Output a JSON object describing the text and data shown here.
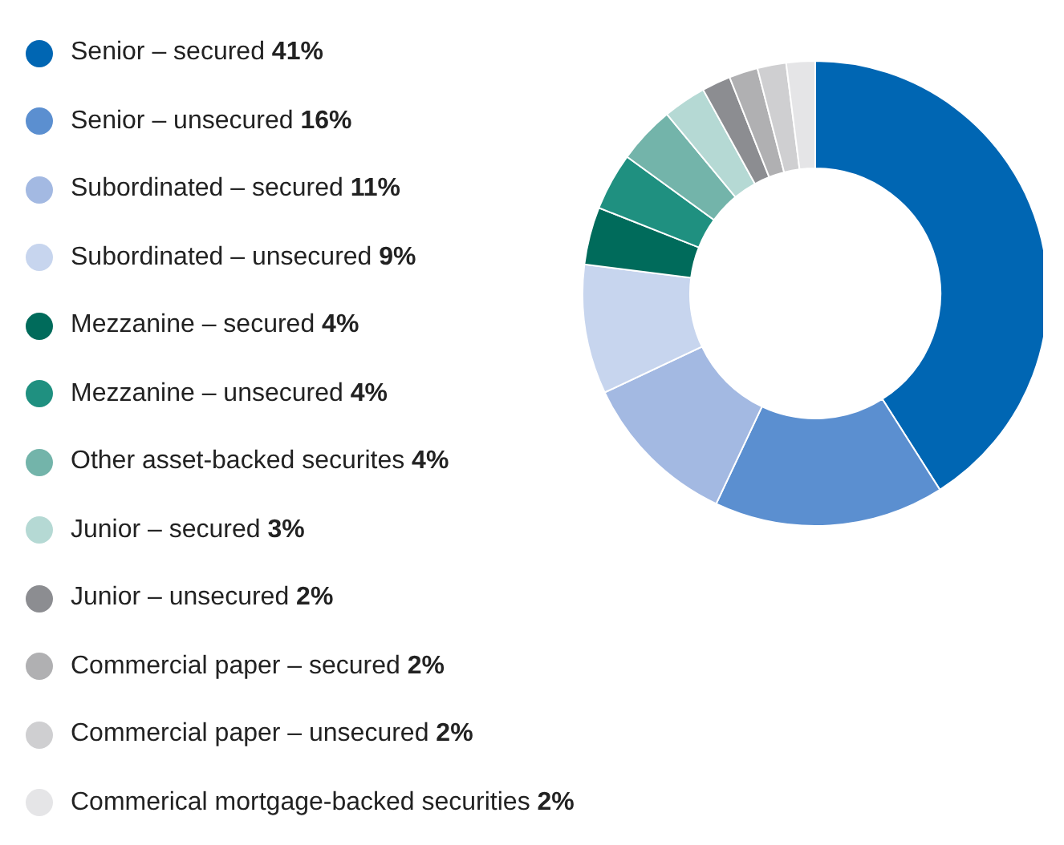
{
  "chart_data": {
    "type": "donut",
    "categories": [
      "Senior – secured",
      "Senior – unsecured",
      "Subordinated – secured",
      "Subordinated – unsecured",
      "Mezzanine – secured",
      "Mezzanine – unsecured",
      "Other asset-backed securites",
      "Junior – secured",
      "Junior – unsecured",
      "Commercial paper – secured",
      "Commercial paper – unsecured",
      "Commerical mortgage-backed securities"
    ],
    "values": [
      41,
      16,
      11,
      9,
      4,
      4,
      4,
      3,
      2,
      2,
      2,
      2
    ],
    "value_labels": [
      "41%",
      "16%",
      "11%",
      "9%",
      "4%",
      "4%",
      "4%",
      "3%",
      "2%",
      "2%",
      "2%",
      "2%"
    ],
    "colors": [
      "#0066b3",
      "#5b8fd0",
      "#a3b9e2",
      "#c7d5ee",
      "#006b5b",
      "#1f9080",
      "#73b4aa",
      "#b5d9d4",
      "#8c8d91",
      "#b0b0b2",
      "#cfcfd1",
      "#e5e5e7"
    ],
    "legend": "left"
  }
}
